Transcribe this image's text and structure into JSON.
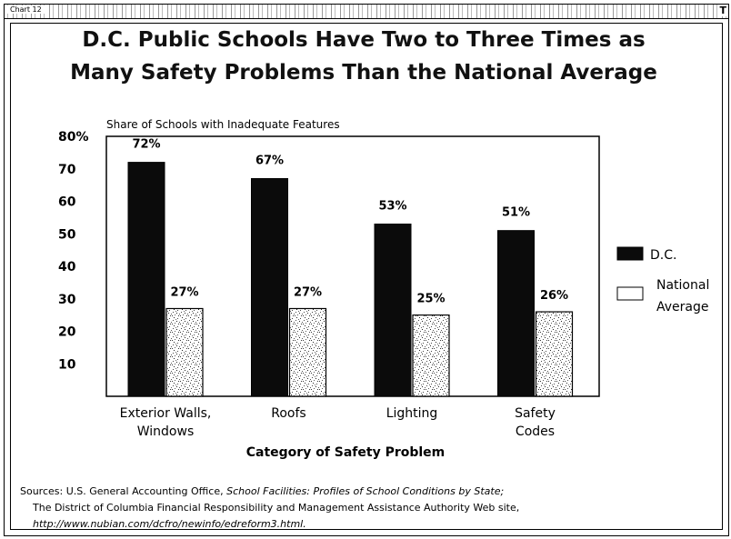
{
  "header": {
    "chart_tag": "Chart 12",
    "corner_mark": "T"
  },
  "title_line1": "D.C. Public Schools Have Two to Three Times as",
  "title_line2": "Many Safety Problems Than the National Average",
  "colors": {
    "dc": "#0b0b0b",
    "national": "#ffffff",
    "national_speckle": "#555555"
  },
  "chart_data": {
    "type": "bar",
    "title": "D.C. Public Schools Have Two to Three Times as Many Safety Problems Than the National Average",
    "subtitle": "Share of Schools with Inadequate Features",
    "xlabel": "Category of Safety Problem",
    "ylabel": "",
    "ylim": [
      0,
      80
    ],
    "y_ticks": [
      "80%",
      "70",
      "60",
      "50",
      "40",
      "30",
      "20",
      "10"
    ],
    "y_tick_values": [
      80,
      70,
      60,
      50,
      40,
      30,
      20,
      10
    ],
    "categories": [
      [
        "Exterior Walls,",
        "Windows"
      ],
      [
        "Roofs"
      ],
      [
        "Lighting"
      ],
      [
        "Safety",
        "Codes"
      ]
    ],
    "series": [
      {
        "name": "D.C.",
        "values": [
          72,
          67,
          53,
          51
        ],
        "labels": [
          "72%",
          "67%",
          "53%",
          "51%"
        ]
      },
      {
        "name": "National Average",
        "legend_lines": [
          "National",
          "Average"
        ],
        "values": [
          27,
          27,
          25,
          26
        ],
        "labels": [
          "27%",
          "27%",
          "25%",
          "26%"
        ]
      }
    ],
    "legend_position": "right",
    "grid": false
  },
  "sources": {
    "prefix": "Sources: U.S. General Accounting Office, ",
    "italic1": "School Facilities: Profiles of School Conditions by State;",
    "line2": "The District of Columbia Financial Responsibility and Management Assistance Authority Web site,",
    "line3": "http://www.nubian.com/dcfro/newinfo/edreform3.html."
  }
}
